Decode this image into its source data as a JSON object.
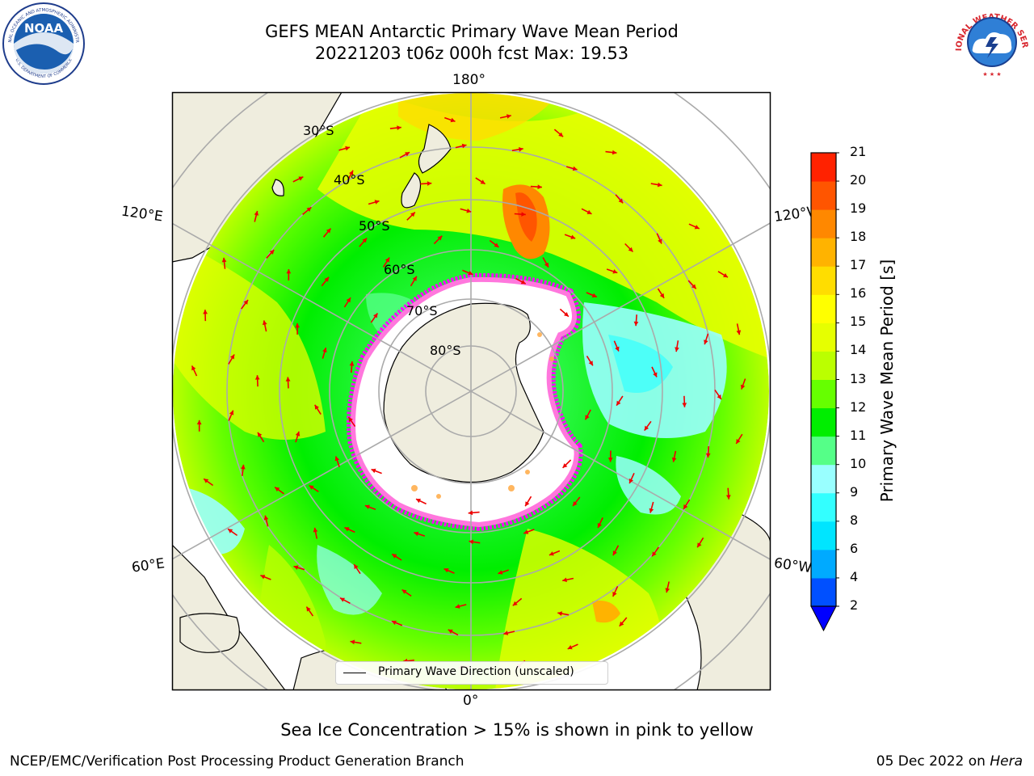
{
  "header": {
    "title_line1": "GEFS MEAN Antarctic Primary Wave Mean Period",
    "title_line2": "20221203 t06z 000h fcst   Max: 19.53"
  },
  "logos": {
    "noaa": "NOAA",
    "noaa_ring": "NATIONAL OCEANIC AND ATMOSPHERIC ADMINISTRATION",
    "noaa_ring_bottom": "U.S. DEPARTMENT OF COMMERCE",
    "nws_ring": "NATIONAL WEATHER SERVICE"
  },
  "map": {
    "projection": "south-polar stereographic",
    "longitude_labels": {
      "top": "180°",
      "bottom": "0°",
      "upper_left": "120°E",
      "lower_left": "60°E",
      "upper_right": "120°W",
      "lower_right": "60°W"
    },
    "latitude_labels": [
      "30°S",
      "40°S",
      "50°S",
      "60°S",
      "70°S",
      "80°S"
    ],
    "legend_label": "Primary Wave Direction (unscaled)",
    "arrow_color": "#ee0000",
    "sea_ice_colors": [
      "#ff00ff",
      "#ff77dd",
      "#ffaa44",
      "#ffff66"
    ]
  },
  "colorbar": {
    "label": "Primary Wave Mean Period [s]",
    "ticks": [
      "2",
      "4",
      "6",
      "8",
      "9",
      "10",
      "11",
      "12",
      "13",
      "14",
      "15",
      "16",
      "17",
      "18",
      "19",
      "20",
      "21"
    ],
    "colors": [
      "#0050ff",
      "#00aaff",
      "#00e5ff",
      "#33ffff",
      "#99ffff",
      "#55ff88",
      "#00ee00",
      "#66ff00",
      "#bbff00",
      "#e6ff00",
      "#ffff00",
      "#ffdd00",
      "#ffb300",
      "#ff8800",
      "#ff5500",
      "#ff2200"
    ],
    "extend_color": "#0000ff"
  },
  "caption": "Sea Ice Concentration > 15% is shown in pink to yellow",
  "footer": {
    "left": "NCEP/EMC/Verification Post Processing Product Generation Branch",
    "date": "05 Dec 2022 on ",
    "host": "Hera"
  }
}
